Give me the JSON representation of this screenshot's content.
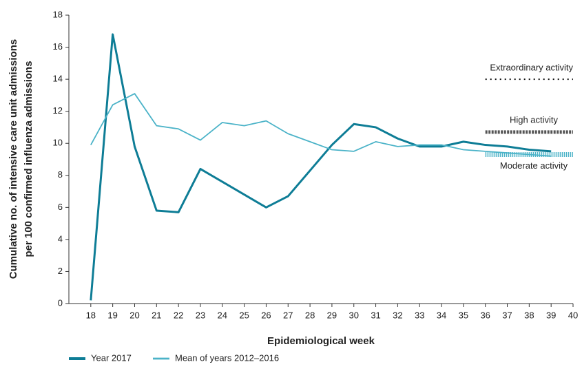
{
  "chart_data": {
    "type": "line",
    "x_label": "Epidemiological week",
    "y_label": [
      "Cumulative no. of intensive care unit admissions",
      "per 100 confirmed influenza admissions"
    ],
    "x": [
      18,
      19,
      20,
      21,
      22,
      23,
      24,
      25,
      26,
      27,
      28,
      29,
      30,
      31,
      32,
      33,
      34,
      35,
      36,
      37,
      38,
      39,
      40
    ],
    "xlim": [
      17,
      40
    ],
    "xticks": [
      18,
      19,
      20,
      21,
      22,
      23,
      24,
      25,
      26,
      27,
      28,
      29,
      30,
      31,
      32,
      33,
      34,
      35,
      36,
      37,
      38,
      39,
      40
    ],
    "ylim": [
      0,
      18
    ],
    "yticks": [
      0,
      2,
      4,
      6,
      8,
      10,
      12,
      14,
      16,
      18
    ],
    "grid": false,
    "legend": "bottom-left",
    "series": [
      {
        "name": "Year 2017",
        "color": "#0e7d96",
        "width": 3,
        "values": [
          0.2,
          16.8,
          9.8,
          5.8,
          5.7,
          8.4,
          7.6,
          6.8,
          6.0,
          6.7,
          8.3,
          9.9,
          11.2,
          11.0,
          10.3,
          9.8,
          9.8,
          10.1,
          9.9,
          9.8,
          9.6,
          9.5,
          null
        ]
      },
      {
        "name": "Mean of years 2012–2016",
        "color": "#4bb3c8",
        "width": 1.8,
        "values": [
          9.9,
          12.4,
          13.1,
          11.1,
          10.9,
          10.2,
          11.3,
          11.1,
          11.4,
          10.6,
          10.1,
          9.6,
          9.5,
          10.1,
          9.8,
          9.9,
          9.9,
          9.6,
          9.5,
          9.4,
          9.3,
          9.2,
          null
        ]
      }
    ],
    "thresholds": [
      {
        "label": "Extraordinary activity",
        "value": 14.0,
        "x_start": 36,
        "x_end": 40,
        "color": "#111"
      },
      {
        "label": "High activity",
        "value": 10.7,
        "x_start": 36,
        "x_end": 40,
        "color": "#555"
      },
      {
        "label": "Moderate activity",
        "value": 9.3,
        "x_start": 36,
        "x_end": 40,
        "color": "#4bb3c8"
      }
    ]
  }
}
